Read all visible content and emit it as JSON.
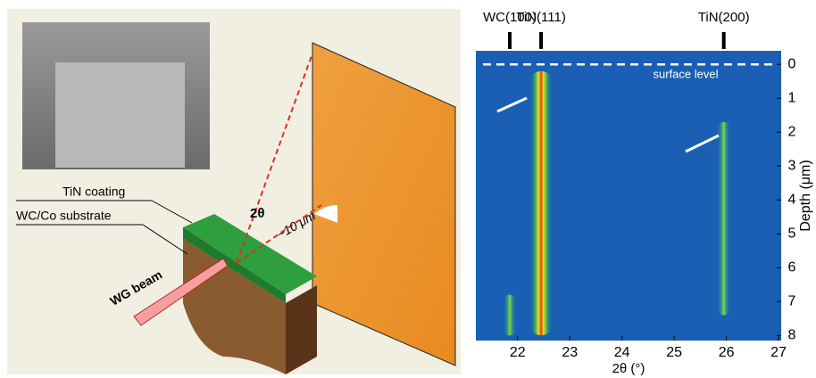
{
  "diagram": {
    "labels": [
      "TiN coating",
      "WC/Co substrate",
      "2θ",
      "~10 μm",
      "WG beam"
    ]
  },
  "chart_data": {
    "type": "heatmap",
    "x_label": "2θ (°)",
    "y_label": "Depth (μm)",
    "xlim": [
      21.2,
      27.05
    ],
    "xticks": [
      22,
      23,
      24,
      25,
      26,
      27
    ],
    "ylim": [
      -0.4,
      8.15
    ],
    "yticks": [
      0,
      1,
      2,
      3,
      4,
      5,
      6,
      7,
      8
    ],
    "annotation": "surface level",
    "peaks": [
      {
        "label": "WC(100)",
        "x": 21.85,
        "depth": [
          6.8,
          8
        ]
      },
      {
        "label": "TiN(111)",
        "x": 22.45,
        "depth": [
          0.2,
          8
        ]
      },
      {
        "label": "TiN(200)",
        "x": 25.95,
        "depth": [
          1.7,
          7.4
        ]
      }
    ]
  }
}
